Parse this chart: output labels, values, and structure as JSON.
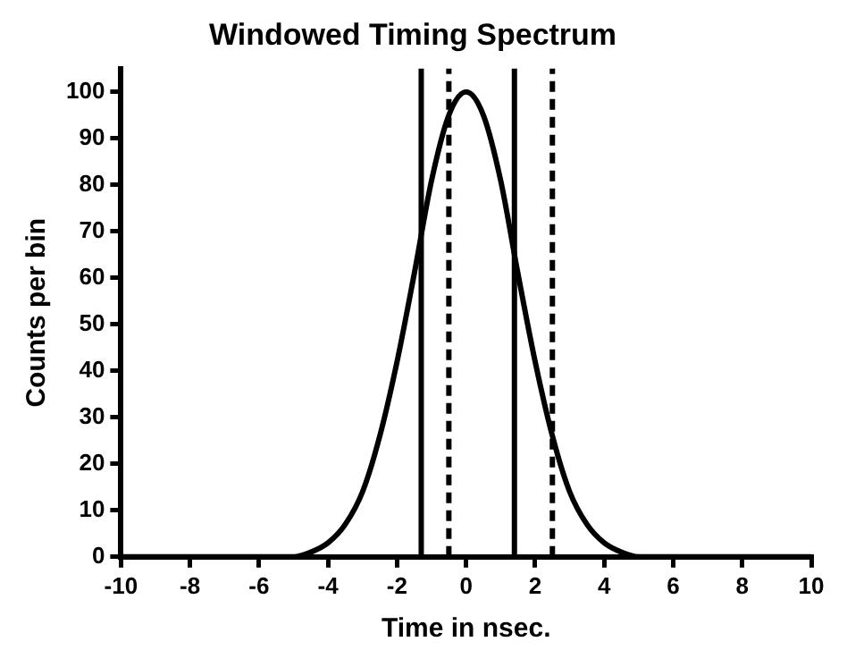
{
  "chart_data": {
    "type": "line",
    "title": "Windowed Timing Spectrum",
    "xlabel": "Time in nsec.",
    "ylabel": "Counts per bin",
    "x": [
      -10,
      -6,
      -5,
      -4.5,
      -4,
      -3.5,
      -3,
      -2.5,
      -2,
      -1.5,
      -1,
      -0.5,
      0,
      0.5,
      1,
      1.5,
      2,
      2.5,
      3,
      3.5,
      4,
      4.5,
      5,
      6,
      10
    ],
    "series": [
      {
        "color": "#000000",
        "values": [
          0,
          0,
          0,
          1,
          3,
          7,
          14,
          26,
          42,
          61,
          81,
          95,
          100,
          95,
          81,
          61,
          42,
          26,
          14,
          7,
          3,
          1,
          0,
          0,
          0
        ]
      }
    ],
    "xlim": [
      -10,
      10
    ],
    "xticks": [
      -10,
      -8,
      -6,
      -4,
      -2,
      0,
      2,
      4,
      6,
      8,
      10
    ],
    "ylim": [
      0,
      105
    ],
    "yticks": [
      0,
      10,
      20,
      30,
      40,
      50,
      60,
      70,
      80,
      90,
      100
    ],
    "grid": false,
    "legend": false,
    "marker": "none",
    "line_style": "solid",
    "ref_lines": [
      {
        "axis": "x",
        "value": -1.3,
        "color": "#000000",
        "line_style": "solid"
      },
      {
        "axis": "x",
        "value": 1.4,
        "color": "#000000",
        "line_style": "solid"
      },
      {
        "axis": "x",
        "value": -0.5,
        "color": "#000000",
        "line_style": "dashed"
      },
      {
        "axis": "x",
        "value": 2.5,
        "color": "#000000",
        "line_style": "dashed"
      }
    ]
  }
}
